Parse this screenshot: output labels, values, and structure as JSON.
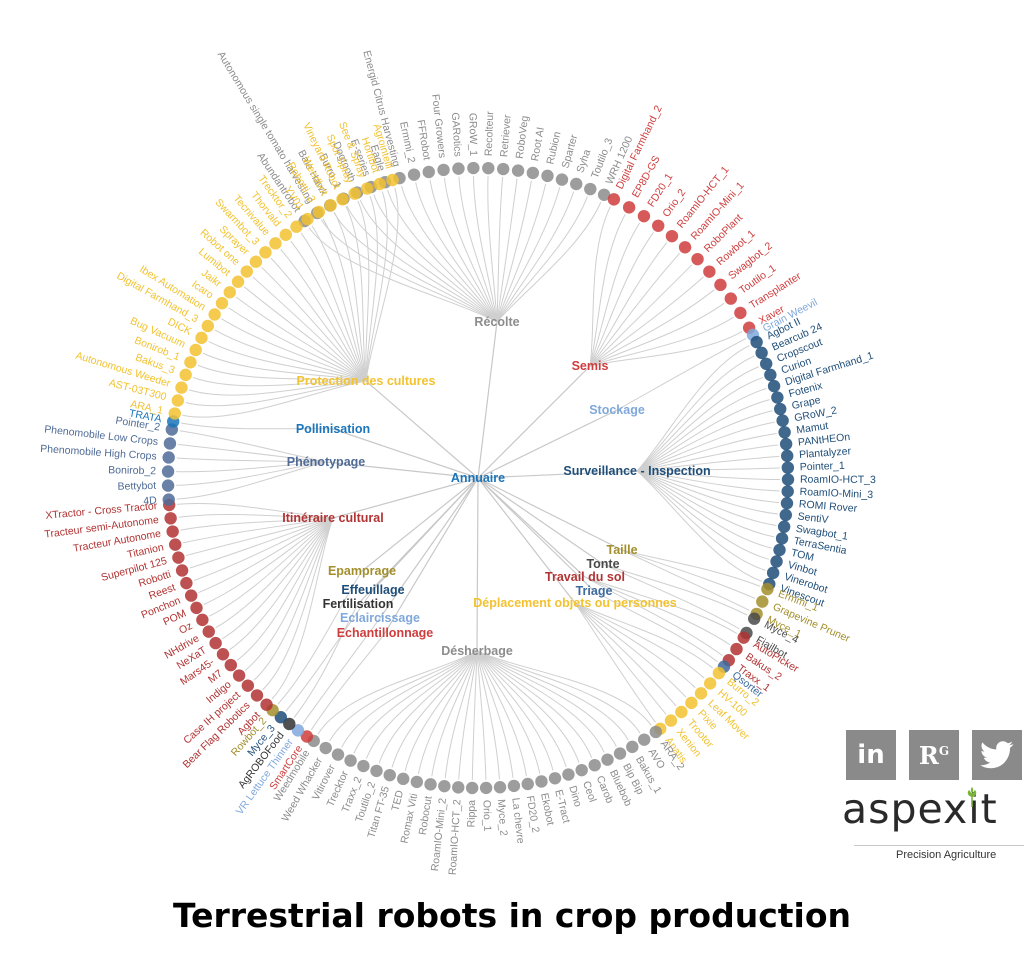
{
  "title": "Terrestrial robots in crop production",
  "root": {
    "label": "Annuaire",
    "color": "#1a75bb"
  },
  "groups": [
    {
      "label": "Récolte",
      "color": "#8c8c8c",
      "items": [
        "Abundantrobot",
        "Autonomous single tomato harvesting",
        "Bale Hawk",
        "Burro_1",
        "Dogtooth",
        "E-series",
        "Eagle",
        "Energid Citrus Harvesting",
        "Ermmi_2",
        "FFRobot",
        "Four Growers",
        "GARotics",
        "GRoW_1",
        "Recolteur",
        "Retriever",
        "RoboVeg",
        "Root AI",
        "Rubion",
        "Sparter",
        "Syha",
        "Toutilo_3",
        "WRH 1200"
      ]
    },
    {
      "label": "Semis",
      "color": "#cf3d3d",
      "items": [
        "Digital Farmhand_2",
        "EP8D-GS",
        "FD20_1",
        "Orio_2",
        "RoamIO-HCT_1",
        "RoamIO-Mini_1",
        "RoboPlant",
        "Rowbot_1",
        "Swagbot_2",
        "Toutilo_1",
        "Transplanter",
        "Xaver"
      ]
    },
    {
      "label": "Stockage",
      "color": "#7fa8dc",
      "items": [
        "Grain Weevil"
      ]
    },
    {
      "label": "Surveillance - Inspection",
      "color": "#1f4e79",
      "items": [
        "Agbot II",
        "Bearcub 24",
        "Cropscout",
        "Curion",
        "Digital Farmhand_1",
        "Fotenix",
        "Grape",
        "GRoW_2",
        "Mamut",
        "PANtHEOn",
        "Plantalyzer",
        "Pointer_1",
        "RoamIO-HCT_3",
        "RoamIO-Mini_3",
        "ROMI Rover",
        "SentiV",
        "Swagbot_1",
        "TerraSentia",
        "TOM",
        "Vinbot",
        "Vinerobot",
        "Vinescout"
      ]
    },
    {
      "label": "Taille",
      "color": "#a38f2c",
      "items": [
        "Ermmi_1",
        "Grapevine Pruner",
        "Myce_1"
      ]
    },
    {
      "label": "Tonte",
      "color": "#4a4a4a",
      "items": [
        "Myce_4",
        "Fiailbot"
      ]
    },
    {
      "label": "Travail du sol",
      "color": "#b23333",
      "items": [
        "AutoPicker",
        "Bakus_2",
        "Traxx_1"
      ]
    },
    {
      "label": "Triage",
      "color": "#3e6b9e",
      "items": [
        "Qsorter"
      ]
    },
    {
      "label": "Déplacement objets ou personnes",
      "color": "#f2c230",
      "items": [
        "Burro_2",
        "HV-100",
        "Leaf Mover",
        "Pixie",
        "Trootor",
        "Xenion",
        "Anatis"
      ]
    },
    {
      "label": "Désherbage",
      "color": "#8c8c8c",
      "items": [
        "ARA_2",
        "AVO",
        "Bakus_1",
        "Bip Bip",
        "Bluebob",
        "Carob",
        "Ceol",
        "Dino",
        "E-Tract",
        "Ekobot",
        "FD20_2",
        "La chevre",
        "Myce_2",
        "Orio_1",
        "Rippa",
        "RoamIO-HCT_2",
        "RoamIO-Mini_2",
        "Robocut",
        "Romax Viti",
        "TED",
        "Titan FT-35",
        "Toutilo_2",
        "Traxx_2",
        "Trecktor",
        "Vitirover",
        "Weed Whacker",
        "Weedmobile"
      ]
    },
    {
      "label": "Echantillonnage",
      "color": "#cf3d3d",
      "items": [
        "SmartCore"
      ]
    },
    {
      "label": "Eclaircissage",
      "color": "#7fa8dc",
      "items": [
        "VR Lettuce Thinner"
      ]
    },
    {
      "label": "Fertilisation",
      "color": "#333333",
      "items": [
        "AgROBOFood"
      ]
    },
    {
      "label": "Effeuillage",
      "color": "#1f4e79",
      "items": [
        "Myce_3"
      ]
    },
    {
      "label": "Epamprage",
      "color": "#a38f2c",
      "items": [
        "Rowbot_2"
      ]
    },
    {
      "label": "Itinéraire cultural",
      "color": "#b23333",
      "items": [
        "Agbot",
        "Bear Flag Robotics",
        "Case IH project",
        "Indigo",
        "M7",
        "Mars45-",
        "NeXaT",
        "NHdrive",
        "Oz",
        "POM",
        "Ponchon",
        "Reest",
        "Robotti",
        "Superpilot 125",
        "Titanion",
        "Tracteur Autonome",
        "Tracteur semi-Autonome",
        "XTractor - Cross Tractor"
      ]
    },
    {
      "label": "Phénotypage",
      "color": "#4f6b96",
      "items": [
        "4D",
        "Bettybot",
        "Bonirob_2",
        "Phenomobile High Crops",
        "Phenomobile Low Crops",
        "Pointer_2"
      ]
    },
    {
      "label": "Pollinisation",
      "color": "#1a75bb",
      "items": [
        "TRATA"
      ]
    },
    {
      "label": "Protection des cultures",
      "color": "#f2c230",
      "items": [
        "ARA_1",
        "AST-03T300",
        "Autonomous Weeder",
        "Bakus_3",
        "Bonirob_1",
        "Bug Vacuum",
        "DICK",
        "Digital Farmhand_3",
        "Ibex Automation",
        "Icaro",
        "Jaikr",
        "Lumibot",
        "Robot one",
        "Sprayer",
        "Swarmbot_3",
        "Tecnivalue",
        "Thorvald",
        "Trecktor_2",
        "YV01",
        "Robotti_3",
        "Weedbot",
        "Vineyard Robot",
        "Spot Spray",
        "See & Spray",
        "Hortibot",
        "Agrointelli"
      ]
    }
  ],
  "social": {
    "linkedin": "in",
    "researchgate": "R",
    "researchgate_sup": "G"
  },
  "logo": {
    "name": "aspexit",
    "tagline": "Precision Agriculture"
  }
}
